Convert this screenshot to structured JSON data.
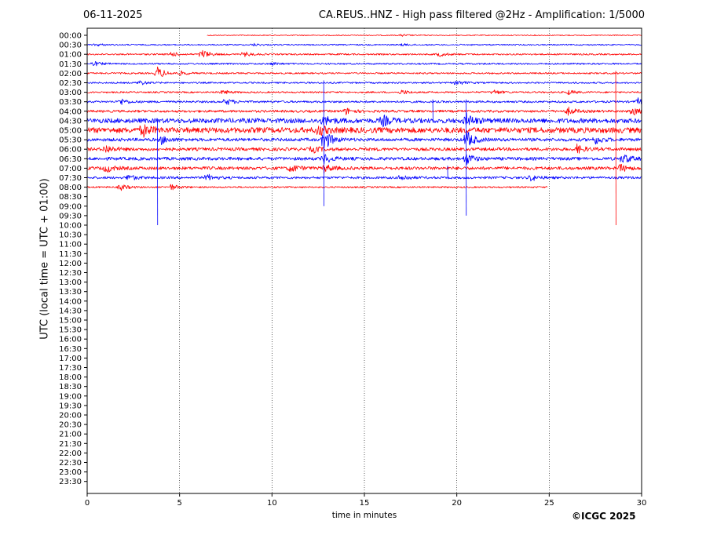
{
  "header": {
    "date": "06-11-2025",
    "title": "CA.REUS..HNZ - High pass filtered @2Hz - Amplification: 1/5000"
  },
  "footer": {
    "copyright": "©ICGC 2025"
  },
  "chart_data": {
    "type": "line",
    "title": "CA.REUS..HNZ - High pass filtered @2Hz - Amplification: 1/5000",
    "xlabel": "time in minutes",
    "ylabel": "UTC (local time = UTC + 01:00)",
    "xlim": [
      0,
      30
    ],
    "x_ticks": [
      0,
      5,
      10,
      15,
      20,
      25,
      30
    ],
    "x_tick_labels": [
      "0",
      "5",
      "10",
      "15",
      "20",
      "25",
      "30"
    ],
    "x_grid": "dotted vertical lines at 5, 10, 15, 20, 25",
    "row_labels": [
      "00:00",
      "00:30",
      "01:00",
      "01:30",
      "02:00",
      "02:30",
      "03:00",
      "03:30",
      "04:00",
      "04:30",
      "05:00",
      "05:30",
      "06:00",
      "06:30",
      "07:00",
      "07:30",
      "08:00",
      "08:30",
      "09:00",
      "09:30",
      "10:00",
      "10:30",
      "11:00",
      "11:30",
      "12:00",
      "12:30",
      "13:00",
      "13:30",
      "14:00",
      "14:30",
      "15:00",
      "15:30",
      "16:00",
      "16:30",
      "17:00",
      "17:30",
      "18:00",
      "18:30",
      "19:00",
      "19:30",
      "20:00",
      "20:30",
      "21:00",
      "21:30",
      "22:00",
      "22:30",
      "23:00",
      "23:30"
    ],
    "trace_colors": [
      "#ff0000",
      "#0000ff"
    ],
    "recorded_until": {
      "row": "08:00",
      "minute": 24.9
    },
    "traces": [
      {
        "row": "00:00",
        "color": "#ff0000",
        "noise": 0.6,
        "x_start": 6.5,
        "events": [
          {
            "t": 17,
            "amp": 1.5
          }
        ]
      },
      {
        "row": "00:30",
        "color": "#0000ff",
        "noise": 0.8,
        "events": [
          {
            "t": 0.5,
            "amp": 1.5
          },
          {
            "t": 9,
            "amp": 1.5
          },
          {
            "t": 17,
            "amp": 1.5
          }
        ]
      },
      {
        "row": "01:00",
        "color": "#ff0000",
        "noise": 1.0,
        "events": [
          {
            "t": 4.5,
            "amp": 3
          },
          {
            "t": 6.2,
            "amp": 6
          },
          {
            "t": 8.5,
            "amp": 3
          },
          {
            "t": 19,
            "amp": 3
          }
        ]
      },
      {
        "row": "01:30",
        "color": "#0000ff",
        "noise": 1.0,
        "events": [
          {
            "t": 0.3,
            "amp": 3
          },
          {
            "t": 10,
            "amp": 2
          }
        ]
      },
      {
        "row": "02:00",
        "color": "#ff0000",
        "noise": 1.0,
        "events": [
          {
            "t": 3.8,
            "amp": 8
          },
          {
            "t": 5,
            "amp": 2.5
          }
        ]
      },
      {
        "row": "02:30",
        "color": "#0000ff",
        "noise": 1.0,
        "events": [
          {
            "t": 2.8,
            "amp": 3
          },
          {
            "t": 20,
            "amp": 3
          }
        ]
      },
      {
        "row": "03:00",
        "color": "#ff0000",
        "noise": 1.0,
        "events": [
          {
            "t": 7.3,
            "amp": 3
          },
          {
            "t": 17,
            "amp": 3
          },
          {
            "t": 22,
            "amp": 3
          },
          {
            "t": 26,
            "amp": 3
          }
        ]
      },
      {
        "row": "03:30",
        "color": "#0000ff",
        "noise": 1.3,
        "events": [
          {
            "t": 1.8,
            "amp": 4
          },
          {
            "t": 7.5,
            "amp": 4
          },
          {
            "t": 29.8,
            "amp": 4
          }
        ]
      },
      {
        "row": "04:00",
        "color": "#ff0000",
        "noise": 1.5,
        "events": [
          {
            "t": 14,
            "amp": 4
          },
          {
            "t": 26,
            "amp": 5
          },
          {
            "t": 29.5,
            "amp": 5
          }
        ]
      },
      {
        "row": "04:30",
        "color": "#0000ff",
        "noise": 3.0,
        "events": [
          {
            "t": 12.8,
            "amp": 6
          },
          {
            "t": 16,
            "amp": 6
          },
          {
            "t": 20.5,
            "amp": 8
          }
        ]
      },
      {
        "row": "05:00",
        "color": "#ff0000",
        "noise": 3.5,
        "events": [
          {
            "t": 3,
            "amp": 7
          },
          {
            "t": 12.5,
            "amp": 6
          }
        ]
      },
      {
        "row": "05:30",
        "color": "#0000ff",
        "noise": 2.0,
        "events": [
          {
            "t": 4,
            "amp": 5
          },
          {
            "t": 12.8,
            "amp": 14
          },
          {
            "t": 20.5,
            "amp": 12
          },
          {
            "t": 27.5,
            "amp": 5
          }
        ]
      },
      {
        "row": "06:00",
        "color": "#ff0000",
        "noise": 2.0,
        "events": [
          {
            "t": 1,
            "amp": 5
          },
          {
            "t": 12.2,
            "amp": 4
          },
          {
            "t": 26.5,
            "amp": 5
          }
        ]
      },
      {
        "row": "06:30",
        "color": "#0000ff",
        "noise": 2.0,
        "events": [
          {
            "t": 12.8,
            "amp": 6
          },
          {
            "t": 20.5,
            "amp": 7
          },
          {
            "t": 29,
            "amp": 6
          }
        ]
      },
      {
        "row": "07:00",
        "color": "#ff0000",
        "noise": 2.0,
        "events": [
          {
            "t": 1,
            "amp": 5
          },
          {
            "t": 11,
            "amp": 5
          },
          {
            "t": 12.8,
            "amp": 5
          },
          {
            "t": 28.8,
            "amp": 5
          }
        ]
      },
      {
        "row": "07:30",
        "color": "#0000ff",
        "noise": 1.5,
        "events": [
          {
            "t": 2.2,
            "amp": 4
          },
          {
            "t": 6.5,
            "amp": 4
          },
          {
            "t": 17,
            "amp": 4
          },
          {
            "t": 24,
            "amp": 4
          }
        ]
      },
      {
        "row": "08:00",
        "color": "#ff0000",
        "noise": 1.0,
        "x_end": 24.9,
        "events": [
          {
            "t": 1.8,
            "amp": 4
          },
          {
            "t": 4.5,
            "amp": 4
          }
        ]
      }
    ],
    "spikes": [
      {
        "minute": 3.8,
        "row_from": "04:30",
        "row_to": "10:00",
        "color": "#0000ff"
      },
      {
        "minute": 12.8,
        "row_from": "02:30",
        "row_to": "09:00",
        "color": "#0000ff"
      },
      {
        "minute": 20.5,
        "row_from": "03:30",
        "row_to": "09:30",
        "color": "#0000ff"
      },
      {
        "minute": 28.6,
        "row_from": "02:00",
        "row_to": "10:00",
        "color": "#ff0000"
      },
      {
        "minute": 18.7,
        "row_from": "03:30",
        "row_to": "04:30",
        "color": "#0000ff"
      },
      {
        "minute": 19.5,
        "row_from": "07:00",
        "row_to": "07:30",
        "color": "#0000ff"
      }
    ]
  }
}
